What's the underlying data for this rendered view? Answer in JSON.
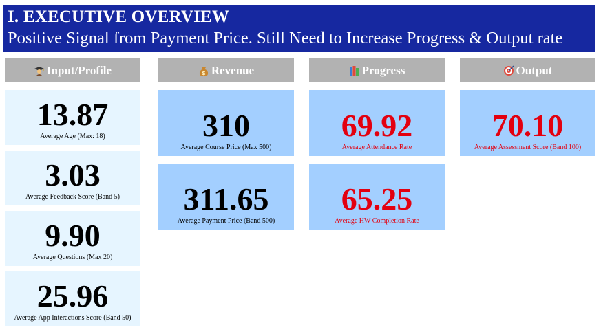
{
  "banner": {
    "title": "I. EXECUTIVE OVERVIEW",
    "subtitle": "Positive Signal from Payment Price. Still Need to Increase Progress & Output rate"
  },
  "sections": {
    "input": {
      "header": "Input/Profile",
      "icon": "student-icon",
      "cards": [
        {
          "value": "13.87",
          "label": "Average Age (Max: 18)"
        },
        {
          "value": "3.03",
          "label": "Average Feedback Score (Band 5)"
        },
        {
          "value": "9.90",
          "label": "Average Questions (Max 20)"
        },
        {
          "value": "25.96",
          "label": "Average App Interactions Score (Band 50)"
        }
      ]
    },
    "revenue": {
      "header": "Revenue",
      "icon": "money-bag-icon",
      "cards": [
        {
          "value": "310",
          "label": "Average Course Price (Max 500)"
        },
        {
          "value": "311.65",
          "label": "Average Payment Price (Band 500)"
        }
      ]
    },
    "progress": {
      "header": "Progress",
      "icon": "books-icon",
      "cards": [
        {
          "value": "69.92",
          "label": "Average Attendance Rate"
        },
        {
          "value": "65.25",
          "label": "Average HW Completion Rate"
        }
      ]
    },
    "output": {
      "header": "Output",
      "icon": "target-icon",
      "cards": [
        {
          "value": "70.10",
          "label": "Average Assessment Score (Band 100)"
        }
      ]
    }
  },
  "colors": {
    "banner": "#1628a0",
    "header": "#b2b2b2",
    "card_light": "#e6f5ff",
    "card_blue": "#a3cfff",
    "alert_red": "#e3000f"
  }
}
